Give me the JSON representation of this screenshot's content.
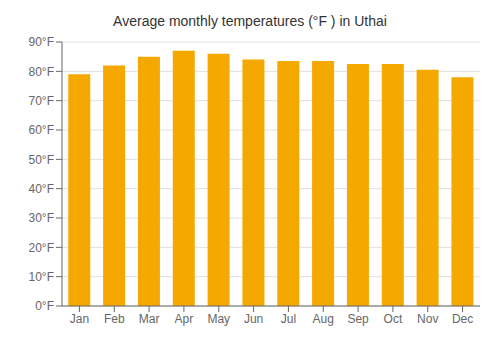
{
  "chart_data": {
    "type": "bar",
    "title": "Average monthly temperatures (°F ) in Uthai",
    "categories": [
      "Jan",
      "Feb",
      "Mar",
      "Apr",
      "May",
      "Jun",
      "Jul",
      "Aug",
      "Sep",
      "Oct",
      "Nov",
      "Dec"
    ],
    "values": [
      79,
      82,
      85,
      87,
      86,
      84,
      83.5,
      83.5,
      82.5,
      82.5,
      80.5,
      78
    ],
    "color": "#F5A800",
    "ylim": [
      0,
      90
    ],
    "yticks": [
      {
        "value": 0,
        "label": "0°F"
      },
      {
        "value": 10,
        "label": "10°F"
      },
      {
        "value": 20,
        "label": "20°F"
      },
      {
        "value": 30,
        "label": "30°F"
      },
      {
        "value": 40,
        "label": "40°F"
      },
      {
        "value": 50,
        "label": "50°F"
      },
      {
        "value": 60,
        "label": "60°F"
      },
      {
        "value": 70,
        "label": "70°F"
      },
      {
        "value": 80,
        "label": "80°F"
      },
      {
        "value": 90,
        "label": "90°F"
      }
    ],
    "grid": true
  }
}
